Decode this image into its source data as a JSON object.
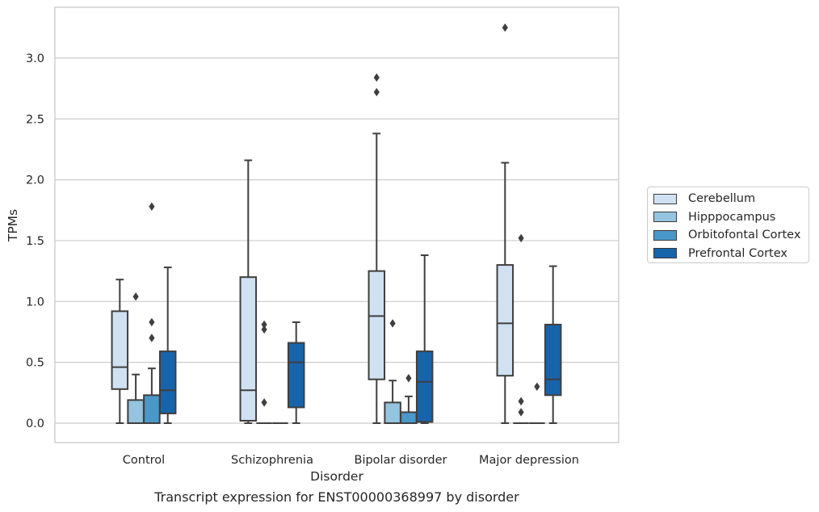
{
  "caption": "Transcript expression for ENST00000368997 by disorder",
  "chart_data": {
    "type": "box",
    "title": "",
    "xlabel": "Disorder",
    "ylabel": "TPMs",
    "ylim": [
      -0.16,
      3.44
    ],
    "yticks": [
      "0.0",
      "0.5",
      "1.0",
      "1.5",
      "2.0",
      "2.5",
      "3.0"
    ],
    "grid": true,
    "legend_position": "right",
    "categories": [
      "Control",
      "Schizophrenia",
      "Bipolar disorder",
      "Major depression"
    ],
    "series": [
      {
        "name": "Cerebellum",
        "color": "#d0e1f2",
        "boxes": [
          {
            "q1": 0.28,
            "median": 0.46,
            "q3": 0.92,
            "whisker_low": 0.0,
            "whisker_high": 1.18,
            "outliers": []
          },
          {
            "q1": 0.02,
            "median": 0.27,
            "q3": 1.2,
            "whisker_low": 0.0,
            "whisker_high": 2.16,
            "outliers": []
          },
          {
            "q1": 0.36,
            "median": 0.88,
            "q3": 1.25,
            "whisker_low": 0.0,
            "whisker_high": 2.38,
            "outliers": [
              2.72,
              2.84
            ]
          },
          {
            "q1": 0.39,
            "median": 0.82,
            "q3": 1.3,
            "whisker_low": 0.0,
            "whisker_high": 2.14,
            "outliers": [
              3.25
            ]
          }
        ]
      },
      {
        "name": "Hipppocampus",
        "color": "#94c4df",
        "boxes": [
          {
            "q1": 0.0,
            "median": 0.0,
            "q3": 0.19,
            "whisker_low": 0.0,
            "whisker_high": 0.4,
            "outliers": [
              1.04
            ]
          },
          {
            "q1": 0.0,
            "median": 0.0,
            "q3": 0.0,
            "whisker_low": 0.0,
            "whisker_high": 0.0,
            "outliers": [
              0.17,
              0.77,
              0.81
            ]
          },
          {
            "q1": 0.0,
            "median": 0.0,
            "q3": 0.17,
            "whisker_low": 0.0,
            "whisker_high": 0.35,
            "outliers": [
              0.82
            ]
          },
          {
            "q1": 0.0,
            "median": 0.0,
            "q3": 0.0,
            "whisker_low": 0.0,
            "whisker_high": 0.0,
            "outliers": [
              0.09,
              0.18,
              1.52
            ]
          }
        ]
      },
      {
        "name": "Orbitofontal Cortex",
        "color": "#4a98c9",
        "boxes": [
          {
            "q1": 0.0,
            "median": 0.0,
            "q3": 0.23,
            "whisker_low": 0.0,
            "whisker_high": 0.45,
            "outliers": [
              0.7,
              0.83,
              1.78
            ]
          },
          {
            "q1": 0.0,
            "median": 0.0,
            "q3": 0.0,
            "whisker_low": 0.0,
            "whisker_high": 0.0,
            "outliers": []
          },
          {
            "q1": 0.0,
            "median": 0.0,
            "q3": 0.09,
            "whisker_low": 0.0,
            "whisker_high": 0.22,
            "outliers": [
              0.37
            ]
          },
          {
            "q1": 0.0,
            "median": 0.0,
            "q3": 0.0,
            "whisker_low": 0.0,
            "whisker_high": 0.0,
            "outliers": [
              0.3
            ]
          }
        ]
      },
      {
        "name": "Prefrontal Cortex",
        "color": "#1764ab",
        "boxes": [
          {
            "q1": 0.08,
            "median": 0.27,
            "q3": 0.59,
            "whisker_low": 0.0,
            "whisker_high": 1.28,
            "outliers": []
          },
          {
            "q1": 0.13,
            "median": 0.5,
            "q3": 0.66,
            "whisker_low": 0.0,
            "whisker_high": 0.83,
            "outliers": []
          },
          {
            "q1": 0.01,
            "median": 0.34,
            "q3": 0.59,
            "whisker_low": 0.0,
            "whisker_high": 1.38,
            "outliers": []
          },
          {
            "q1": 0.23,
            "median": 0.36,
            "q3": 0.81,
            "whisker_low": 0.0,
            "whisker_high": 1.29,
            "outliers": []
          }
        ]
      }
    ]
  }
}
